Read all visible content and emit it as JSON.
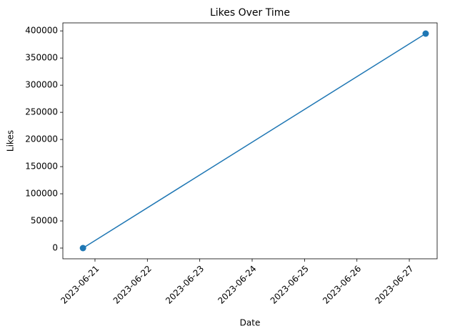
{
  "chart_data": {
    "type": "line",
    "title": "Likes Over Time",
    "x_label": "Date",
    "y_label": "Likes",
    "x": [
      "2023-06-20T18:30",
      "2023-06-27T07:30"
    ],
    "series": [
      {
        "name": "Likes",
        "color": "#1f77b4",
        "values": [
          0,
          395000
        ]
      }
    ],
    "xlim": [
      "2023-06-20T09:17",
      "2023-06-27T12:45"
    ],
    "xticks": [
      "2023-06-21",
      "2023-06-22",
      "2023-06-23",
      "2023-06-24",
      "2023-06-25",
      "2023-06-26",
      "2023-06-27"
    ],
    "ylim": [
      -19750,
      414750
    ],
    "yticks": [
      0,
      50000,
      100000,
      150000,
      200000,
      250000,
      300000,
      350000,
      400000
    ],
    "grid": false
  }
}
